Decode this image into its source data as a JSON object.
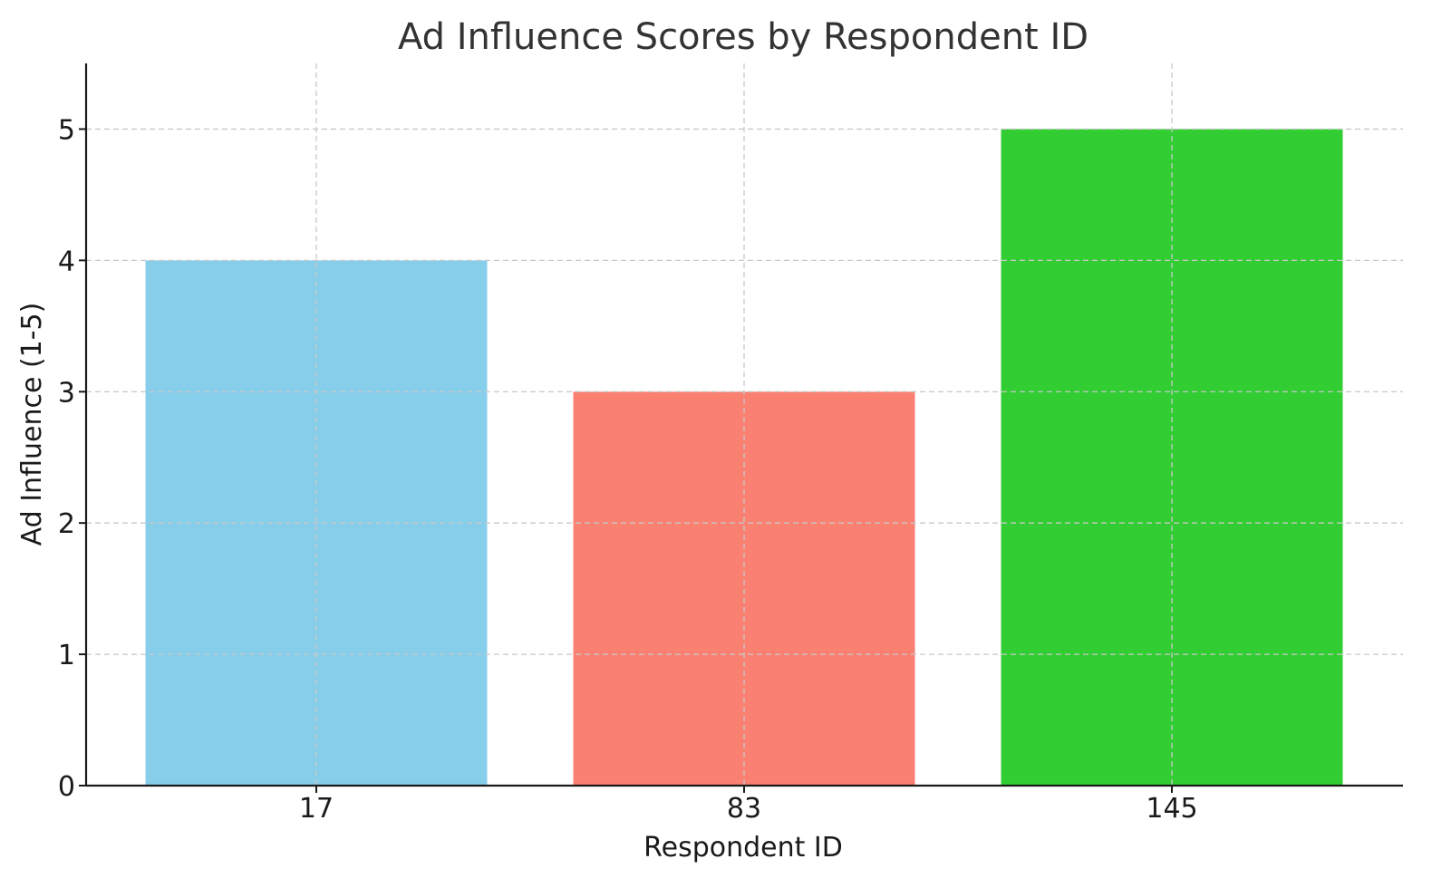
{
  "chart_data": {
    "type": "bar",
    "title": "Ad Influence Scores by Respondent ID",
    "xlabel": "Respondent ID",
    "ylabel": "Ad Influence (1-5)",
    "categories": [
      "17",
      "83",
      "145"
    ],
    "values": [
      4,
      3,
      5
    ],
    "colors": [
      "#87CEEB",
      "#FA8072",
      "#32CD32"
    ],
    "ylim": [
      0,
      5.5
    ],
    "yticks": [
      0,
      1,
      2,
      3,
      4,
      5
    ],
    "grid": true,
    "grid_color": "#c8c8c8",
    "axis_color": "#1a1a1a"
  }
}
